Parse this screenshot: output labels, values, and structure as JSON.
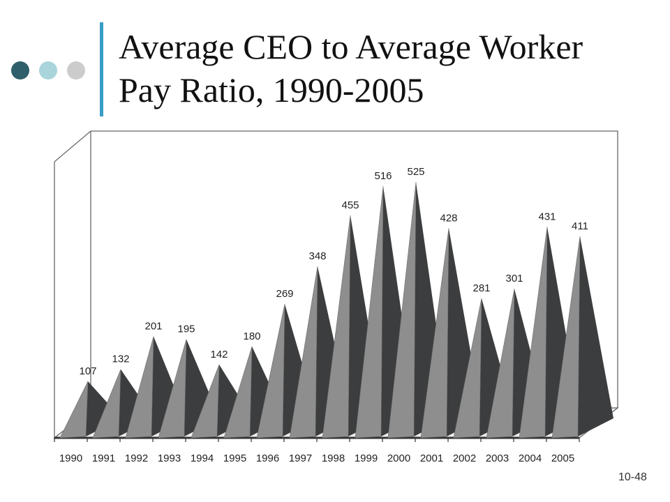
{
  "title": "Average CEO to Average Worker Pay Ratio, 1990-2005",
  "slide_number": "10-48",
  "colors": {
    "dot_1": "#2f5f6a",
    "dot_2": "#a9d4db",
    "dot_3": "#cccccc",
    "title_bar": "#3a9dc7",
    "peak_light": "#8e8e8e",
    "peak_dark": "#3c3d3e",
    "frame": "#666666"
  },
  "chart_data": {
    "type": "area",
    "categories": [
      "1990",
      "1991",
      "1992",
      "1993",
      "1994",
      "1995",
      "1996",
      "1997",
      "1998",
      "1999",
      "2000",
      "2001",
      "2002",
      "2003",
      "2004",
      "2005"
    ],
    "values": [
      107,
      132,
      201,
      195,
      142,
      180,
      269,
      348,
      455,
      516,
      525,
      428,
      281,
      301,
      431,
      411
    ],
    "title": "Average CEO to Average Worker Pay Ratio, 1990-2005",
    "xlabel": "",
    "ylabel": "",
    "ylim": [
      0,
      600
    ],
    "grid": false,
    "legend": "none"
  }
}
